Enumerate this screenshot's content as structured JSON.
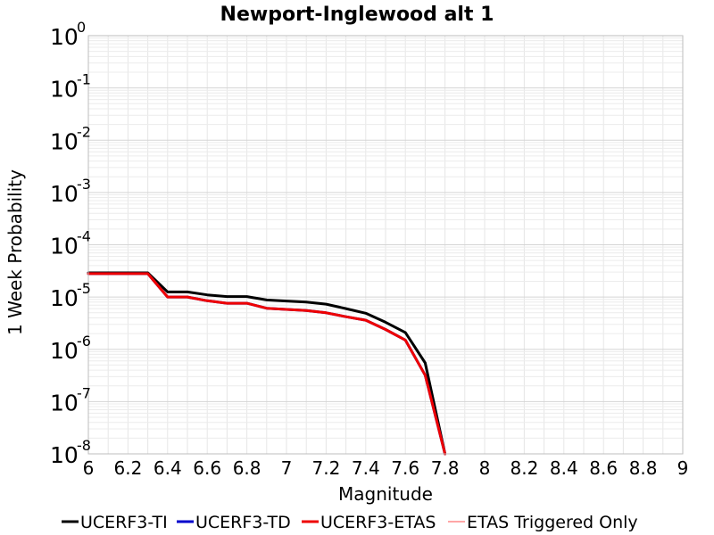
{
  "chart_data": {
    "type": "line",
    "title": "Newport-Inglewood alt 1",
    "xlabel": "Magnitude",
    "ylabel": "1 Week Probability",
    "xlim": [
      6,
      9
    ],
    "ylim": [
      1e-08,
      1
    ],
    "y_scale": "log",
    "grid": true,
    "legend_position": "bottom",
    "x_ticks": [
      "6",
      "6.2",
      "6.4",
      "6.6",
      "6.8",
      "7",
      "7.2",
      "7.4",
      "7.6",
      "7.8",
      "8",
      "8.2",
      "8.4",
      "8.6",
      "8.8",
      "9"
    ],
    "y_ticks": [
      {
        "base": "10",
        "exp": "0",
        "value": 1
      },
      {
        "base": "10",
        "exp": "-1",
        "value": 0.1
      },
      {
        "base": "10",
        "exp": "-2",
        "value": 0.01
      },
      {
        "base": "10",
        "exp": "-3",
        "value": 0.001
      },
      {
        "base": "10",
        "exp": "-4",
        "value": 0.0001
      },
      {
        "base": "10",
        "exp": "-5",
        "value": 1e-05
      },
      {
        "base": "10",
        "exp": "-6",
        "value": 1e-06
      },
      {
        "base": "10",
        "exp": "-7",
        "value": 1e-07
      },
      {
        "base": "10",
        "exp": "-8",
        "value": 1e-08
      }
    ],
    "series": [
      {
        "name": "UCERF3-TI",
        "color": "#000000",
        "x": [
          6.0,
          6.1,
          6.2,
          6.3,
          6.4,
          6.5,
          6.6,
          6.7,
          6.8,
          6.9,
          7.0,
          7.1,
          7.2,
          7.3,
          7.4,
          7.5,
          7.6,
          7.7,
          7.8
        ],
        "y": [
          2.9e-05,
          2.9e-05,
          2.9e-05,
          2.9e-05,
          1.25e-05,
          1.25e-05,
          1.1e-05,
          1.02e-05,
          1.02e-05,
          8.8e-06,
          8.4e-06,
          8e-06,
          7.3e-06,
          6e-06,
          4.9e-06,
          3.3e-06,
          2.1e-06,
          5.5e-07,
          1e-08
        ]
      },
      {
        "name": "UCERF3-TD",
        "color": "#0000cc",
        "x": [
          6.0,
          6.1,
          6.2,
          6.3,
          6.4,
          6.5,
          6.6,
          6.7,
          6.8,
          6.9,
          7.0,
          7.1,
          7.2,
          7.3,
          7.4,
          7.5,
          7.6,
          7.7,
          7.8
        ],
        "y": [
          2.8e-05,
          2.8e-05,
          2.8e-05,
          2.8e-05,
          1e-05,
          1e-05,
          8.5e-06,
          7.6e-06,
          7.6e-06,
          6.1e-06,
          5.8e-06,
          5.5e-06,
          5e-06,
          4.2e-06,
          3.6e-06,
          2.4e-06,
          1.5e-06,
          3.2e-07,
          1e-08
        ]
      },
      {
        "name": "UCERF3-ETAS",
        "color": "#ee0000",
        "x": [
          6.0,
          6.1,
          6.2,
          6.3,
          6.4,
          6.5,
          6.6,
          6.7,
          6.8,
          6.9,
          7.0,
          7.1,
          7.2,
          7.3,
          7.4,
          7.5,
          7.6,
          7.7,
          7.8
        ],
        "y": [
          2.8e-05,
          2.8e-05,
          2.8e-05,
          2.8e-05,
          1e-05,
          1e-05,
          8.5e-06,
          7.6e-06,
          7.6e-06,
          6.1e-06,
          5.8e-06,
          5.5e-06,
          5e-06,
          4.2e-06,
          3.6e-06,
          2.4e-06,
          1.5e-06,
          3.2e-07,
          1e-08
        ]
      },
      {
        "name": "ETAS Triggered Only",
        "color": "#ff4d4d",
        "x": [],
        "y": []
      }
    ]
  }
}
